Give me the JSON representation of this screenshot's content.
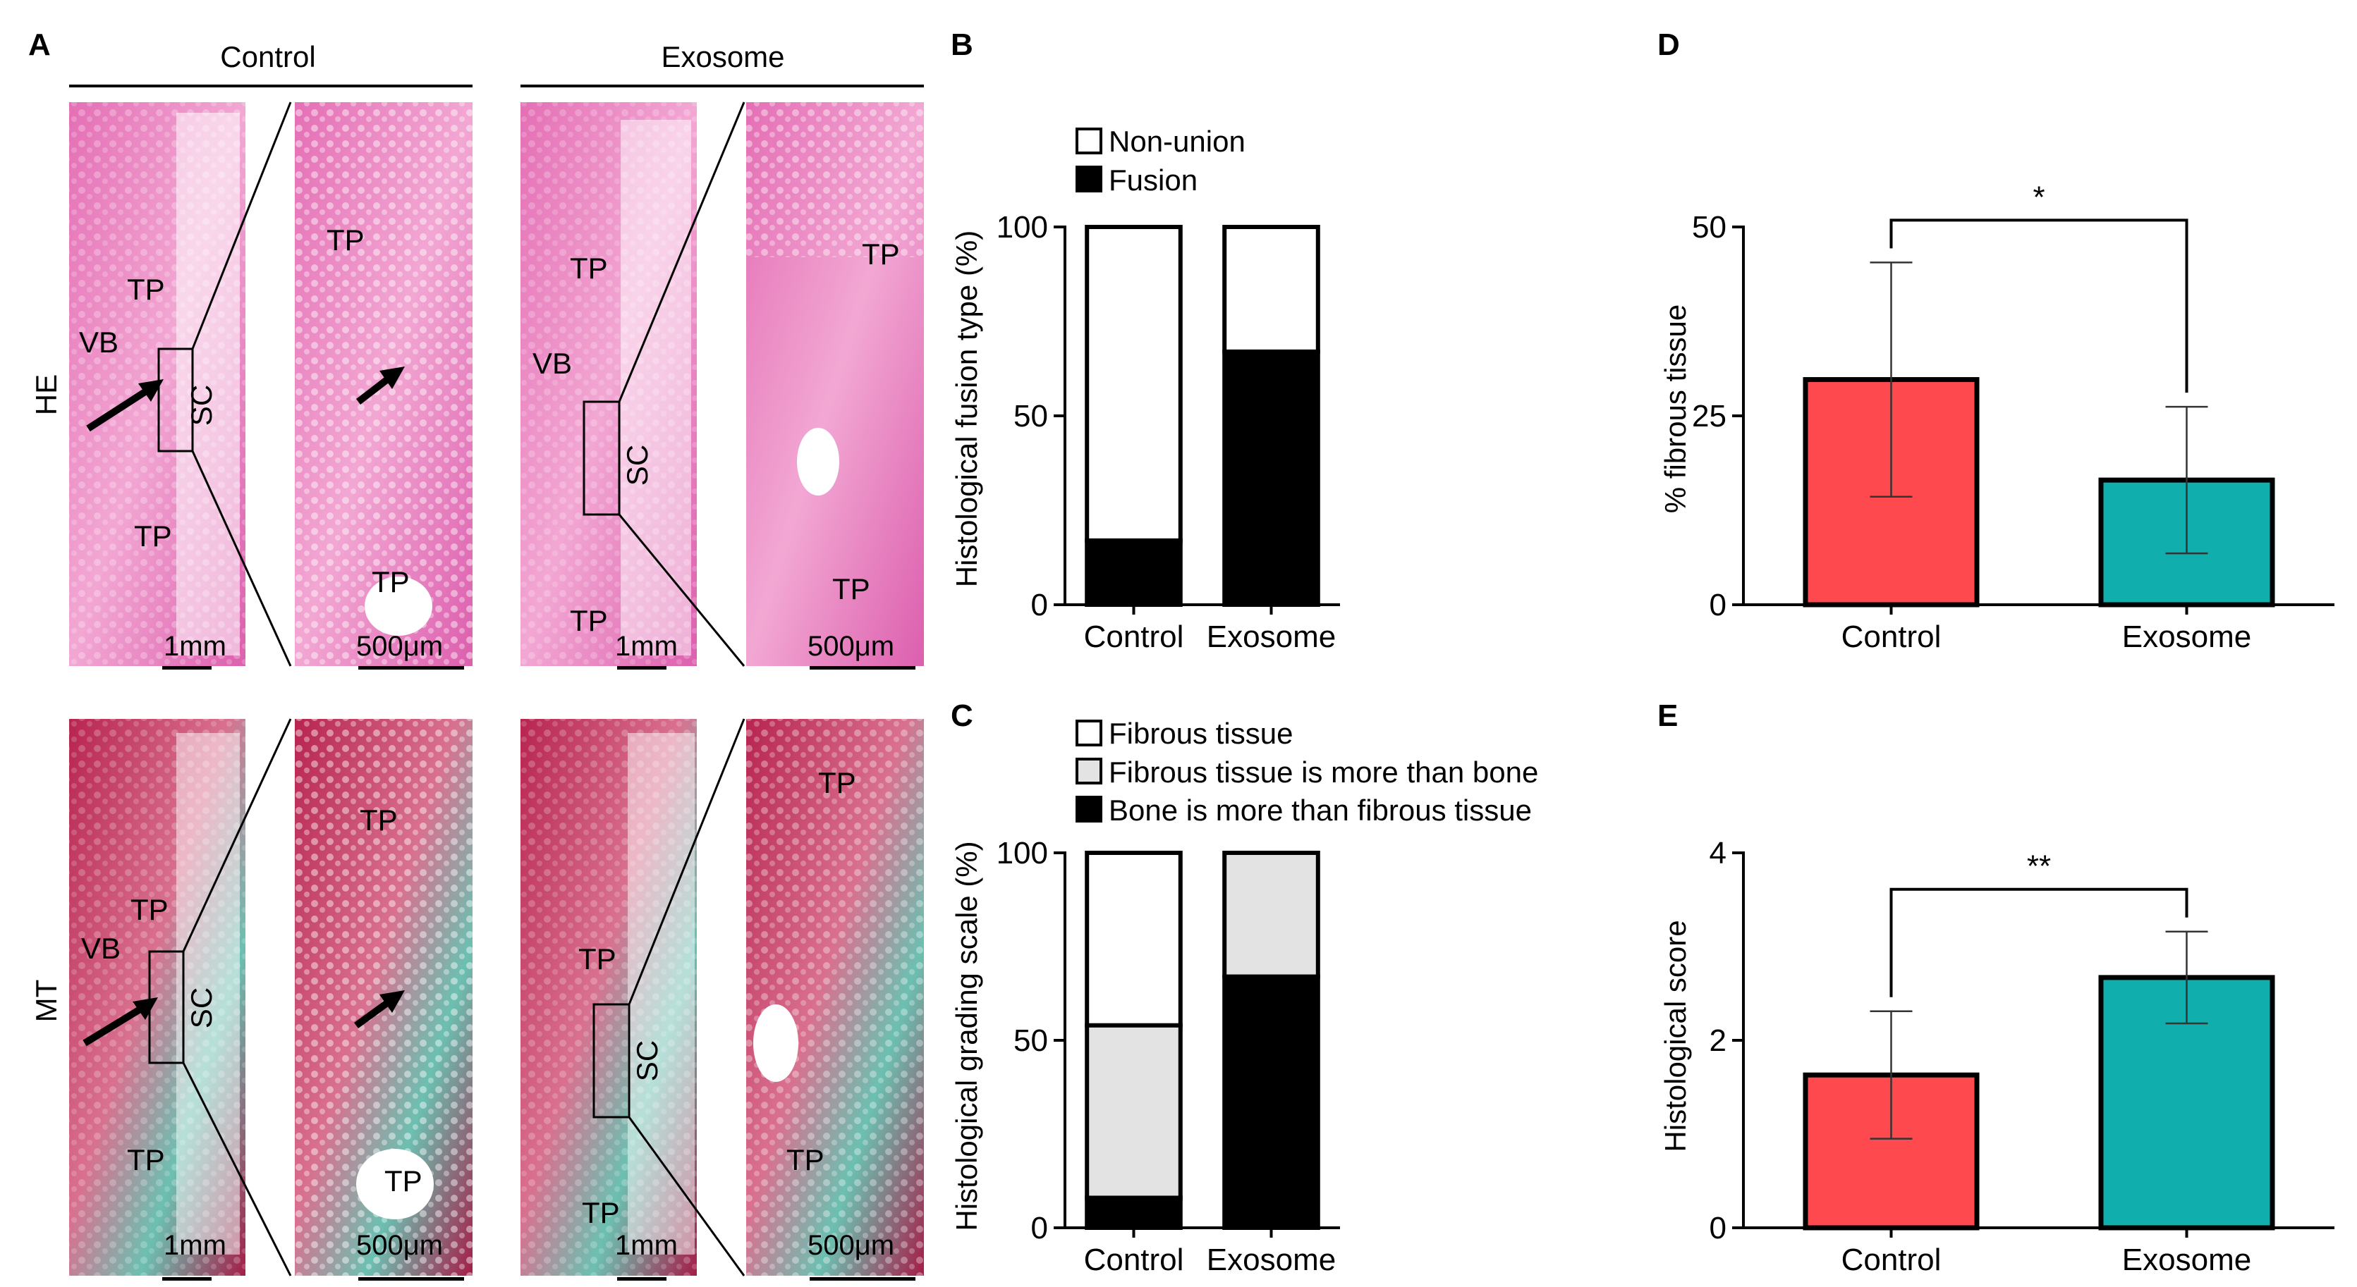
{
  "panels": {
    "A": "A",
    "B": "B",
    "C": "C",
    "D": "D",
    "E": "E"
  },
  "panelA": {
    "col_control": "Control",
    "col_exosome": "Exosome",
    "row_he": "HE",
    "row_mt": "MT",
    "labels": {
      "tp": "TP",
      "vb": "VB",
      "sc": "SC"
    },
    "scale_1mm": "1mm",
    "scale_500um": "500μm",
    "colors": {
      "he_pink": "#e98fc4",
      "mt_red": "#b5224f",
      "mt_teal": "#4fb8a8"
    }
  },
  "chart_data": [
    {
      "id": "B",
      "type": "bar",
      "stacked": true,
      "categories": [
        "Control",
        "Exosome"
      ],
      "series": [
        {
          "name": "Fusion",
          "values": [
            17,
            67
          ],
          "color": "#000000"
        },
        {
          "name": "Non-union",
          "values": [
            83,
            33
          ],
          "color": "#ffffff"
        }
      ],
      "legend": [
        "Non-union",
        "Fusion"
      ],
      "ylabel": "Histological fusion type (%)",
      "yticks": [
        "0",
        "50",
        "100"
      ],
      "ylim": [
        0,
        100
      ],
      "legend_position": "top-left"
    },
    {
      "id": "C",
      "type": "bar",
      "stacked": true,
      "categories": [
        "Control",
        "Exosome"
      ],
      "series": [
        {
          "name": "Bone is more than fibrous tissue",
          "values": [
            8,
            67
          ],
          "color": "#000000"
        },
        {
          "name": "Fibrous tissue is more than bone",
          "values": [
            46,
            33
          ],
          "color": "#e3e3e3"
        },
        {
          "name": "Fibrous tissue",
          "values": [
            46,
            0
          ],
          "color": "#ffffff"
        }
      ],
      "legend": [
        "Fibrous tissue",
        "Fibrous tissue is more than bone",
        "Bone is more than fibrous tissue"
      ],
      "ylabel": "Histological grading scale (%)",
      "yticks": [
        "0",
        "50",
        "100"
      ],
      "ylim": [
        0,
        100
      ],
      "legend_position": "top-left"
    },
    {
      "id": "D",
      "type": "bar",
      "categories": [
        "Control",
        "Exosome"
      ],
      "values": [
        29.8,
        16.5
      ],
      "errors": [
        15.5,
        9.7
      ],
      "colors": [
        "#fe4a4e",
        "#10aeac"
      ],
      "ylabel": "% fibrous tissue",
      "yticks": [
        "0",
        "25",
        "50"
      ],
      "ylim": [
        0,
        50
      ],
      "significance": "*"
    },
    {
      "id": "E",
      "type": "bar",
      "categories": [
        "Control",
        "Exosome"
      ],
      "values": [
        1.63,
        2.67
      ],
      "errors": [
        0.68,
        0.49
      ],
      "colors": [
        "#fe4a4e",
        "#10aeac"
      ],
      "ylabel": "Histological score",
      "yticks": [
        "0",
        "2",
        "4"
      ],
      "ylim": [
        0,
        4
      ],
      "significance": "**"
    }
  ]
}
